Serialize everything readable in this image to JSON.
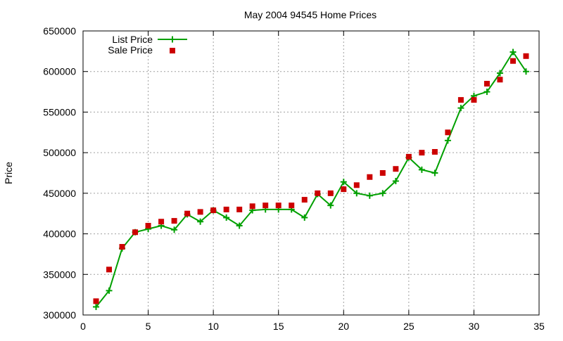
{
  "chart_data": {
    "type": "line",
    "title": "May 2004 94545 Home Prices",
    "xlabel": "",
    "ylabel": "Price",
    "xlim": [
      0,
      35
    ],
    "ylim": [
      300000,
      650000
    ],
    "x_ticks": [
      0,
      5,
      10,
      15,
      20,
      25,
      30,
      35
    ],
    "y_ticks": [
      300000,
      350000,
      400000,
      450000,
      500000,
      550000,
      600000,
      650000
    ],
    "grid": true,
    "legend_position": "top-left",
    "series": [
      {
        "name": "List Price",
        "style": "lines+crosses",
        "color": "#00a000",
        "x": [
          1,
          2,
          3,
          4,
          5,
          6,
          7,
          8,
          9,
          10,
          11,
          12,
          13,
          14,
          15,
          16,
          17,
          18,
          19,
          20,
          21,
          22,
          23,
          24,
          25,
          26,
          27,
          28,
          29,
          30,
          31,
          32,
          33,
          34
        ],
        "y": [
          310000,
          330000,
          382000,
          402000,
          406000,
          410000,
          405000,
          424000,
          415000,
          429000,
          420000,
          410000,
          429000,
          430000,
          430000,
          430000,
          420000,
          449000,
          435000,
          464000,
          450000,
          447000,
          450000,
          465000,
          494000,
          479000,
          475000,
          515000,
          555000,
          570000,
          575000,
          598000,
          624000,
          600000
        ]
      },
      {
        "name": "Sale Price",
        "style": "points",
        "color": "#cc0000",
        "x": [
          1,
          2,
          3,
          4,
          5,
          6,
          7,
          8,
          9,
          10,
          11,
          12,
          13,
          14,
          15,
          16,
          17,
          18,
          19,
          20,
          21,
          22,
          23,
          24,
          25,
          26,
          27,
          28,
          29,
          30,
          31,
          32,
          33,
          34
        ],
        "y": [
          317000,
          356000,
          384000,
          402000,
          410000,
          415000,
          416000,
          425000,
          427000,
          429000,
          430000,
          430000,
          434000,
          435000,
          435000,
          435000,
          442000,
          450000,
          450000,
          455000,
          460000,
          470000,
          475000,
          480000,
          495000,
          500000,
          501000,
          525000,
          565000,
          565000,
          585000,
          590000,
          613000,
          619000
        ]
      }
    ]
  }
}
